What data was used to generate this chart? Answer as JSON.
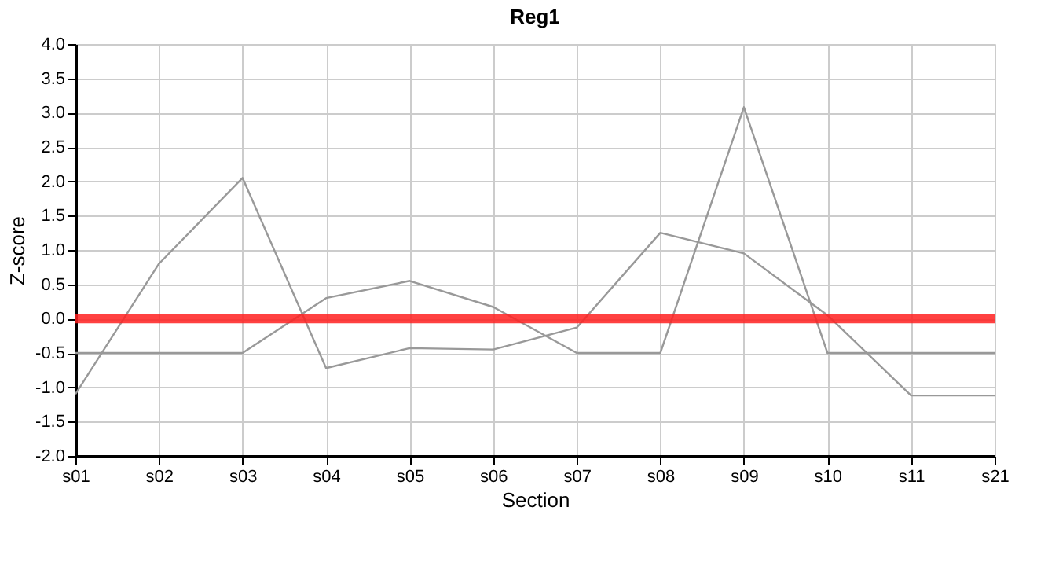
{
  "chart_data": {
    "type": "line",
    "title": "Reg1",
    "xlabel": "Section",
    "ylabel": "Z-score",
    "categories": [
      "s01",
      "s02",
      "s03",
      "s04",
      "s05",
      "s06",
      "s07",
      "s08",
      "s09",
      "s10",
      "s11",
      "s21"
    ],
    "series": [
      {
        "color": "#999999",
        "values": [
          -1.1,
          0.8,
          2.05,
          -0.72,
          -0.43,
          -0.45,
          -0.13,
          1.25,
          0.95,
          0.05,
          -1.12,
          -1.12
        ]
      },
      {
        "color": "#999999",
        "values": [
          -0.5,
          -0.5,
          -0.5,
          0.3,
          0.55,
          0.17,
          -0.5,
          -0.5,
          3.08,
          -0.5,
          -0.5,
          -0.5
        ]
      }
    ],
    "ylim": [
      -2,
      4
    ],
    "yticks": [
      {
        "value": -2,
        "label": "-2.0"
      },
      {
        "value": -1.5,
        "label": "-1.5"
      },
      {
        "value": -1,
        "label": "-1.0"
      },
      {
        "value": -0.5,
        "label": "-0.5"
      },
      {
        "value": 0,
        "label": "0.0"
      },
      {
        "value": 0.5,
        "label": "0.5"
      },
      {
        "value": 1,
        "label": "1.0"
      },
      {
        "value": 1.5,
        "label": "1.5"
      },
      {
        "value": 2,
        "label": "2.0"
      },
      {
        "value": 2.5,
        "label": "2.5"
      },
      {
        "value": 3,
        "label": "3.0"
      },
      {
        "value": 3.5,
        "label": "3.5"
      },
      {
        "value": 4,
        "label": "4.0"
      }
    ],
    "ref_lines": [
      {
        "axis": "y",
        "value": 0,
        "color": "#ff2020"
      }
    ],
    "grid": true,
    "marker": "none",
    "line_style": "solid"
  }
}
